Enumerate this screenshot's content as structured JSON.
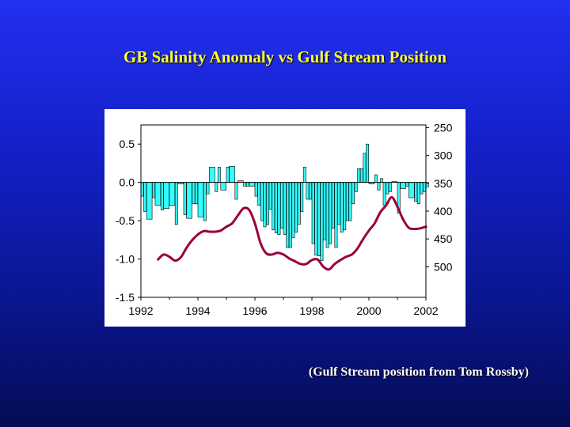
{
  "slide": {
    "title": "GB Salinity Anomaly vs Gulf Stream Position",
    "credit": "(Gulf Stream position from Tom Rossby)"
  },
  "colors": {
    "background_top": "#2230f0",
    "background_bottom": "#050c55",
    "title": "#ffff33",
    "bars": "#33ffff",
    "line": "#99003d"
  },
  "chart_data": {
    "type": "bar+line",
    "title": "",
    "xlabel": "",
    "ylabel": "",
    "xlim": [
      1992,
      2002
    ],
    "ylim": [
      -1.5,
      0.75
    ],
    "y2lim": [
      555,
      245
    ],
    "y2_inverted": true,
    "grid": false,
    "legend": "none",
    "x_ticks": [
      "1992",
      "1994",
      "1996",
      "1998",
      "2000",
      "2002"
    ],
    "y_ticks": [
      "0.5",
      "0.0",
      "-0.5",
      "-1.0",
      "-1.5"
    ],
    "y2_ticks": [
      "250",
      "300",
      "350",
      "400",
      "450",
      "500"
    ],
    "bar_series": {
      "axis": "left",
      "x": [
        1992.0,
        1992.1,
        1992.2,
        1992.4,
        1992.5,
        1992.7,
        1992.8,
        1993.0,
        1993.2,
        1993.3,
        1993.5,
        1993.6,
        1993.8,
        1993.9,
        1994.0,
        1994.2,
        1994.3,
        1994.4,
        1994.6,
        1994.7,
        1994.8,
        1995.0,
        1995.1,
        1995.3,
        1995.4,
        1995.6,
        1995.7,
        1995.8,
        1996.0,
        1996.1,
        1996.2,
        1996.3,
        1996.4,
        1996.5,
        1996.6,
        1996.7,
        1996.8,
        1996.9,
        1997.0,
        1997.1,
        1997.2,
        1997.3,
        1997.4,
        1997.5,
        1997.6,
        1997.7,
        1997.8,
        1997.9,
        1998.0,
        1998.1,
        1998.2,
        1998.3,
        1998.4,
        1998.5,
        1998.6,
        1998.7,
        1998.8,
        1998.9,
        1999.0,
        1999.1,
        1999.2,
        1999.3,
        1999.4,
        1999.5,
        1999.6,
        1999.7,
        1999.8,
        1999.9,
        2000.0,
        2000.2,
        2000.3,
        2000.4,
        2000.5,
        2000.6,
        2000.7,
        2000.8,
        2001.0,
        2001.1,
        2001.3,
        2001.4,
        2001.6,
        2001.7,
        2001.8,
        2001.9,
        2002.0
      ],
      "values": [
        -0.18,
        -0.38,
        -0.48,
        -0.2,
        -0.3,
        -0.36,
        -0.34,
        -0.3,
        -0.55,
        -0.02,
        -0.42,
        -0.47,
        -0.28,
        -0.28,
        -0.45,
        -0.5,
        -0.15,
        0.2,
        -0.12,
        0.2,
        -0.1,
        0.2,
        0.21,
        -0.22,
        0.02,
        -0.05,
        -0.05,
        -0.05,
        -0.18,
        -0.3,
        -0.5,
        -0.58,
        -0.55,
        -0.35,
        -0.62,
        -0.66,
        -0.68,
        -0.6,
        -0.68,
        -0.85,
        -0.85,
        -0.72,
        -0.65,
        -0.55,
        -0.38,
        0.2,
        -0.22,
        -0.22,
        -0.8,
        -0.95,
        -0.96,
        -1.02,
        -0.75,
        -0.85,
        -0.8,
        -0.6,
        -0.85,
        -0.55,
        -0.65,
        -0.62,
        -0.5,
        -0.5,
        -0.28,
        -0.12,
        0.18,
        0.18,
        0.38,
        0.5,
        -0.02,
        0.1,
        -0.1,
        0.05,
        -0.3,
        -0.15,
        -0.12,
        0.01,
        -0.4,
        -0.08,
        -0.05,
        -0.2,
        -0.25,
        -0.28,
        -0.15,
        -0.12,
        -0.06
      ]
    },
    "line_series": {
      "axis": "right",
      "x": [
        1992.6,
        1992.8,
        1993.0,
        1993.2,
        1993.4,
        1993.6,
        1993.8,
        1994.0,
        1994.2,
        1994.4,
        1994.6,
        1994.8,
        1995.0,
        1995.2,
        1995.4,
        1995.6,
        1995.8,
        1996.0,
        1996.2,
        1996.4,
        1996.6,
        1996.8,
        1997.0,
        1997.2,
        1997.4,
        1997.6,
        1997.8,
        1998.0,
        1998.2,
        1998.4,
        1998.6,
        1998.8,
        1999.0,
        1999.2,
        1999.4,
        1999.6,
        1999.8,
        2000.0,
        2000.2,
        2000.4,
        2000.6,
        2000.8,
        2001.0,
        2001.2,
        2001.4,
        2001.6,
        2001.8,
        2002.0
      ],
      "values": [
        487,
        478,
        482,
        489,
        483,
        466,
        452,
        442,
        436,
        437,
        437,
        435,
        428,
        422,
        408,
        395,
        398,
        422,
        458,
        476,
        478,
        475,
        478,
        485,
        490,
        495,
        495,
        488,
        487,
        500,
        505,
        495,
        488,
        482,
        478,
        467,
        450,
        435,
        422,
        402,
        390,
        375,
        392,
        415,
        430,
        432,
        431,
        428
      ]
    }
  }
}
